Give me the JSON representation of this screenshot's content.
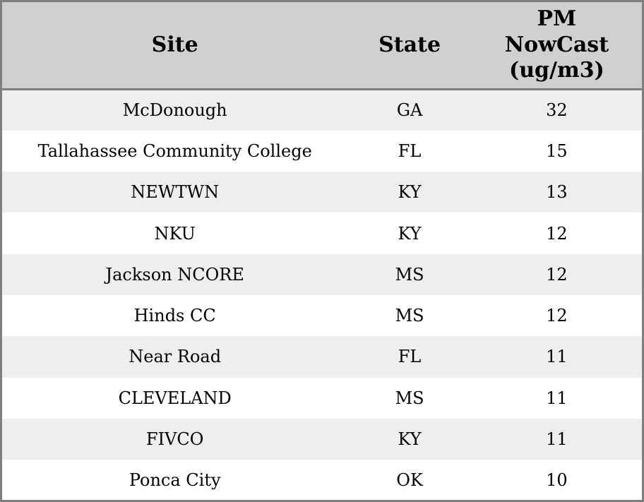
{
  "table": {
    "columns": [
      {
        "key": "site",
        "label": "Site"
      },
      {
        "key": "state",
        "label": "State"
      },
      {
        "key": "pm_nowcast",
        "label": "PM\nNowCast\n(ug/m3)"
      }
    ],
    "rows": [
      {
        "site": "McDonough",
        "state": "GA",
        "pm_nowcast": "32"
      },
      {
        "site": "Tallahassee Community College",
        "state": "FL",
        "pm_nowcast": "15"
      },
      {
        "site": "NEWTWN",
        "state": "KY",
        "pm_nowcast": "13"
      },
      {
        "site": "NKU",
        "state": "KY",
        "pm_nowcast": "12"
      },
      {
        "site": "Jackson NCORE",
        "state": "MS",
        "pm_nowcast": "12"
      },
      {
        "site": "Hinds CC",
        "state": "MS",
        "pm_nowcast": "12"
      },
      {
        "site": "Near Road",
        "state": "FL",
        "pm_nowcast": "11"
      },
      {
        "site": "CLEVELAND",
        "state": "MS",
        "pm_nowcast": "11"
      },
      {
        "site": "FIVCO",
        "state": "KY",
        "pm_nowcast": "11"
      },
      {
        "site": "Ponca City",
        "state": "OK",
        "pm_nowcast": "10"
      }
    ]
  },
  "colors": {
    "header_bg": "#d0d0d0",
    "row_alt_bg": "#eeeeee",
    "row_bg": "#ffffff",
    "border": "#7f7f7f",
    "text": "#000000"
  }
}
